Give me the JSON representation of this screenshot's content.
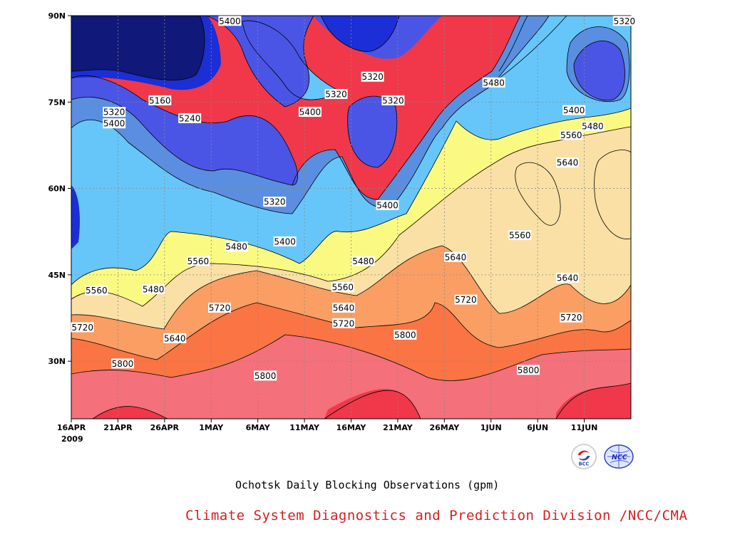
{
  "chart_data": {
    "type": "heatmap",
    "subtype": "filled-contour",
    "title": "Ochotsk Daily Blocking Observations (gpm)",
    "x_tick_labels": [
      "16APR",
      "21APR",
      "26APR",
      "1MAY",
      "6MAY",
      "11MAY",
      "16MAY",
      "21MAY",
      "26MAY",
      "1JUN",
      "6JUN",
      "11JUN"
    ],
    "x_year_label": "2009",
    "x_range": [
      "2009-04-16",
      "2009-06-15"
    ],
    "y_tick_labels": [
      "90N",
      "75N",
      "60N",
      "45N",
      "30N"
    ],
    "y_values": [
      90,
      75,
      60,
      45,
      30
    ],
    "y_range": [
      20,
      90
    ],
    "grid": true,
    "contour_levels": [
      5160,
      5240,
      5320,
      5400,
      5480,
      5560,
      5640,
      5720,
      5800,
      5880
    ],
    "fill_colors": [
      "#10187a",
      "#1c2ed6",
      "#4a55e6",
      "#5a8ee0",
      "#66c6fa",
      "#fafa82",
      "#fae0a4",
      "#fa9e64",
      "#fa7444",
      "#f4707a",
      "#f0384a"
    ],
    "contour_labels": [
      {
        "text": "5400",
        "lon_day": 17,
        "lat": 89.1
      },
      {
        "text": "5320",
        "lon_day": 59.3,
        "lat": 89.1
      },
      {
        "text": "5320",
        "lon_day": 32.3,
        "lat": 79.4
      },
      {
        "text": "5320",
        "lon_day": 28.4,
        "lat": 76.4
      },
      {
        "text": "5320",
        "lon_day": 34.5,
        "lat": 75.3
      },
      {
        "text": "5480",
        "lon_day": 45.3,
        "lat": 78.4
      },
      {
        "text": "5160",
        "lon_day": 9.5,
        "lat": 75.3
      },
      {
        "text": "5400",
        "lon_day": 25.6,
        "lat": 73.3
      },
      {
        "text": "5240",
        "lon_day": 12.7,
        "lat": 72.2
      },
      {
        "text": "5320",
        "lon_day": 4.6,
        "lat": 73.3
      },
      {
        "text": "5400",
        "lon_day": 4.6,
        "lat": 71.3
      },
      {
        "text": "5400",
        "lon_day": 53.9,
        "lat": 73.6
      },
      {
        "text": "5480",
        "lon_day": 55.9,
        "lat": 70.8
      },
      {
        "text": "5560",
        "lon_day": 53.6,
        "lat": 69.3
      },
      {
        "text": "5640",
        "lon_day": 53.2,
        "lat": 64.5
      },
      {
        "text": "5320",
        "lon_day": 21.8,
        "lat": 57.7
      },
      {
        "text": "5400",
        "lon_day": 33.9,
        "lat": 57.1
      },
      {
        "text": "5400",
        "lon_day": 22.9,
        "lat": 50.8
      },
      {
        "text": "5560",
        "lon_day": 48.1,
        "lat": 51.9
      },
      {
        "text": "5480",
        "lon_day": 17.7,
        "lat": 49.9
      },
      {
        "text": "5640",
        "lon_day": 41.2,
        "lat": 48.1
      },
      {
        "text": "5560",
        "lon_day": 13.6,
        "lat": 47.4
      },
      {
        "text": "5480",
        "lon_day": 31.3,
        "lat": 47.4
      },
      {
        "text": "5640",
        "lon_day": 53.2,
        "lat": 44.5
      },
      {
        "text": "5560",
        "lon_day": 2.7,
        "lat": 42.3
      },
      {
        "text": "5480",
        "lon_day": 8.8,
        "lat": 42.5
      },
      {
        "text": "5560",
        "lon_day": 29.1,
        "lat": 42.9
      },
      {
        "text": "5720",
        "lon_day": 42.3,
        "lat": 40.7
      },
      {
        "text": "5640",
        "lon_day": 29.2,
        "lat": 39.3
      },
      {
        "text": "5720",
        "lon_day": 15.9,
        "lat": 39.3
      },
      {
        "text": "5720",
        "lon_day": 53.6,
        "lat": 37.6
      },
      {
        "text": "5720",
        "lon_day": 29.2,
        "lat": 36.6
      },
      {
        "text": "5720",
        "lon_day": 1.2,
        "lat": 35.9
      },
      {
        "text": "5800",
        "lon_day": 35.8,
        "lat": 34.6
      },
      {
        "text": "5640",
        "lon_day": 11.1,
        "lat": 34.0
      },
      {
        "text": "5800",
        "lon_day": 5.5,
        "lat": 29.6
      },
      {
        "text": "5800",
        "lon_day": 49.0,
        "lat": 28.5
      },
      {
        "text": "5800",
        "lon_day": 20.8,
        "lat": 27.5
      }
    ]
  },
  "caption": {
    "title": "Ochotsk Daily Blocking Observations (gpm)",
    "organization": "Climate System Diagnostics and Prediction Division /NCC/CMA"
  },
  "logos": {
    "bcc": {
      "text": "BCC"
    },
    "ncc": {
      "text": "NCC"
    }
  }
}
